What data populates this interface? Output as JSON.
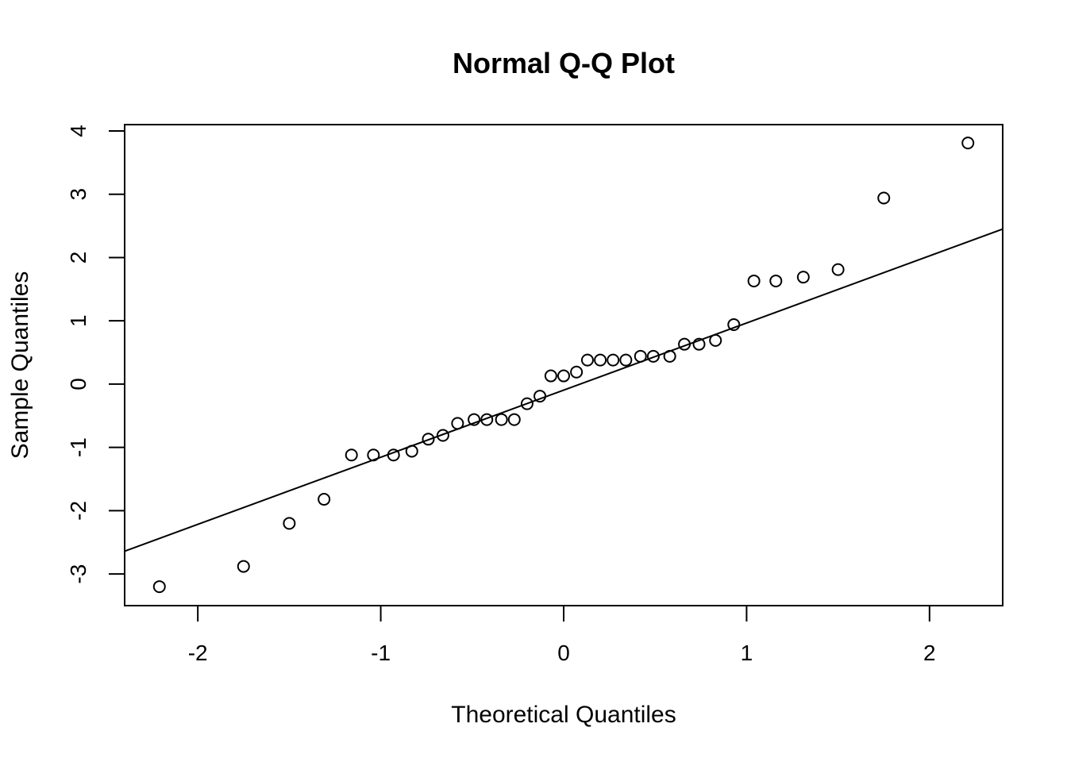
{
  "chart_data": {
    "type": "scatter",
    "title": "Normal Q-Q Plot",
    "xlabel": "Theoretical Quantiles",
    "ylabel": "Sample Quantiles",
    "xlim": [
      -2.4,
      2.4
    ],
    "ylim": [
      -3.5,
      4.1
    ],
    "x_ticks": [
      -2,
      -1,
      0,
      1,
      2
    ],
    "x_tick_labels": [
      "-2",
      "-1",
      "0",
      "1",
      "2"
    ],
    "y_ticks": [
      -3,
      -2,
      -1,
      0,
      1,
      2,
      3,
      4
    ],
    "y_tick_labels": [
      "-3",
      "-2",
      "-1",
      "0",
      "1",
      "2",
      "3",
      "4"
    ],
    "grid": false,
    "reference_line": {
      "x": [
        -2.4,
        2.4
      ],
      "y": [
        -2.64,
        2.45
      ]
    },
    "x": [
      -2.21,
      -1.75,
      -1.5,
      -1.31,
      -1.16,
      -1.04,
      -0.93,
      -0.83,
      -0.74,
      -0.66,
      -0.58,
      -0.49,
      -0.42,
      -0.34,
      -0.27,
      -0.2,
      -0.13,
      -0.07,
      0.0,
      0.07,
      0.13,
      0.2,
      0.27,
      0.34,
      0.42,
      0.49,
      0.58,
      0.66,
      0.74,
      0.83,
      0.93,
      1.04,
      1.16,
      1.31,
      1.5,
      1.75,
      2.21
    ],
    "y": [
      -3.2,
      -2.88,
      -2.2,
      -1.82,
      -1.12,
      -1.12,
      -1.12,
      -1.06,
      -0.87,
      -0.81,
      -0.62,
      -0.56,
      -0.56,
      -0.56,
      -0.56,
      -0.31,
      -0.19,
      0.13,
      0.13,
      0.19,
      0.38,
      0.38,
      0.38,
      0.38,
      0.44,
      0.44,
      0.44,
      0.63,
      0.63,
      0.69,
      0.94,
      1.63,
      1.63,
      1.69,
      1.81,
      2.94,
      3.81
    ]
  }
}
